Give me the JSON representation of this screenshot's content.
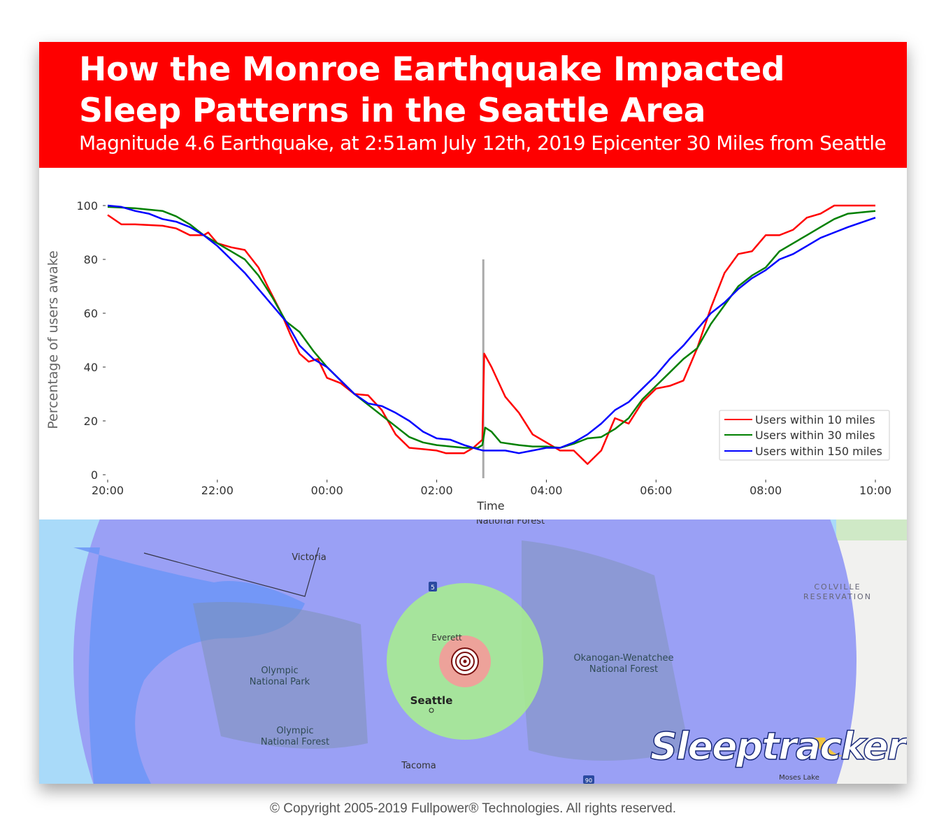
{
  "header": {
    "title": "How the Monroe Earthquake Impacted Sleep Patterns in the Seattle Area",
    "subtitle": "Magnitude 4.6 Earthquake, at 2:51am July 12th, 2019 Epicenter 30 Miles from Seattle",
    "background_color": "#fe0000"
  },
  "chart_data": {
    "type": "line",
    "xlabel": "Time",
    "ylabel": "Percentage of users awake",
    "ylim": [
      0,
      100
    ],
    "xlim": [
      "20:00",
      "10:00"
    ],
    "x_ticks": [
      "20:00",
      "22:00",
      "00:00",
      "02:00",
      "04:00",
      "06:00",
      "08:00",
      "10:00"
    ],
    "y_ticks": [
      0,
      20,
      40,
      60,
      80,
      100
    ],
    "grid": false,
    "legend_position": "bottom-right",
    "event_marker": {
      "time": "02:51",
      "color": "#aaaaaa",
      "top_value": 80
    },
    "series": [
      {
        "name": "Users within 10 miles",
        "color": "#ff0000",
        "points": [
          [
            "20:00",
            96.5
          ],
          [
            "20:15",
            93
          ],
          [
            "20:30",
            93
          ],
          [
            "21:00",
            92.5
          ],
          [
            "21:15",
            91.5
          ],
          [
            "21:30",
            89
          ],
          [
            "21:45",
            89
          ],
          [
            "21:50",
            90
          ],
          [
            "22:00",
            86
          ],
          [
            "22:15",
            84.5
          ],
          [
            "22:30",
            83.5
          ],
          [
            "22:45",
            77
          ],
          [
            "22:55",
            70
          ],
          [
            "23:10",
            60
          ],
          [
            "23:20",
            52
          ],
          [
            "23:30",
            45
          ],
          [
            "23:40",
            42
          ],
          [
            "23:50",
            43
          ],
          [
            "00:00",
            36
          ],
          [
            "00:15",
            34
          ],
          [
            "00:30",
            30
          ],
          [
            "00:45",
            29.5
          ],
          [
            "01:00",
            24
          ],
          [
            "01:15",
            15
          ],
          [
            "01:30",
            10
          ],
          [
            "01:45",
            9.5
          ],
          [
            "02:00",
            9
          ],
          [
            "02:10",
            8
          ],
          [
            "02:30",
            8
          ],
          [
            "02:40",
            10
          ],
          [
            "02:50",
            13
          ],
          [
            "02:52",
            45
          ],
          [
            "03:00",
            40
          ],
          [
            "03:15",
            29
          ],
          [
            "03:30",
            23
          ],
          [
            "03:45",
            15
          ],
          [
            "04:00",
            12
          ],
          [
            "04:15",
            9
          ],
          [
            "04:30",
            9
          ],
          [
            "04:45",
            4
          ],
          [
            "05:00",
            9
          ],
          [
            "05:15",
            21
          ],
          [
            "05:30",
            19
          ],
          [
            "05:45",
            27
          ],
          [
            "06:00",
            32
          ],
          [
            "06:15",
            33
          ],
          [
            "06:30",
            35
          ],
          [
            "06:45",
            47
          ],
          [
            "07:00",
            62
          ],
          [
            "07:15",
            75
          ],
          [
            "07:30",
            82
          ],
          [
            "07:45",
            83
          ],
          [
            "08:00",
            89
          ],
          [
            "08:15",
            89
          ],
          [
            "08:30",
            91
          ],
          [
            "08:45",
            95.5
          ],
          [
            "09:00",
            97
          ],
          [
            "09:15",
            100
          ],
          [
            "10:00",
            100
          ]
        ]
      },
      {
        "name": "Users within 30 miles",
        "color": "#008000",
        "points": [
          [
            "20:00",
            99.5
          ],
          [
            "20:30",
            99
          ],
          [
            "21:00",
            98
          ],
          [
            "21:15",
            96
          ],
          [
            "21:30",
            93
          ],
          [
            "21:45",
            89
          ],
          [
            "22:00",
            86
          ],
          [
            "22:15",
            83
          ],
          [
            "22:30",
            80
          ],
          [
            "22:45",
            74
          ],
          [
            "23:00",
            66
          ],
          [
            "23:15",
            57
          ],
          [
            "23:30",
            53
          ],
          [
            "23:45",
            46
          ],
          [
            "00:00",
            40
          ],
          [
            "00:15",
            35
          ],
          [
            "00:30",
            30
          ],
          [
            "00:45",
            26
          ],
          [
            "01:00",
            22
          ],
          [
            "01:15",
            18
          ],
          [
            "01:30",
            14
          ],
          [
            "01:45",
            12
          ],
          [
            "02:00",
            11
          ],
          [
            "02:15",
            10.5
          ],
          [
            "02:30",
            10
          ],
          [
            "02:45",
            10
          ],
          [
            "02:50",
            11
          ],
          [
            "02:53",
            17.5
          ],
          [
            "03:00",
            16
          ],
          [
            "03:10",
            12
          ],
          [
            "03:30",
            11
          ],
          [
            "03:45",
            10.5
          ],
          [
            "04:00",
            10.5
          ],
          [
            "04:15",
            10
          ],
          [
            "04:30",
            11.5
          ],
          [
            "04:45",
            13.5
          ],
          [
            "05:00",
            14
          ],
          [
            "05:15",
            17
          ],
          [
            "05:30",
            21
          ],
          [
            "05:45",
            28
          ],
          [
            "06:00",
            33
          ],
          [
            "06:15",
            38
          ],
          [
            "06:30",
            43
          ],
          [
            "06:45",
            47
          ],
          [
            "07:00",
            56
          ],
          [
            "07:15",
            63
          ],
          [
            "07:30",
            70
          ],
          [
            "07:45",
            74
          ],
          [
            "08:00",
            77
          ],
          [
            "08:15",
            83
          ],
          [
            "08:30",
            86
          ],
          [
            "08:45",
            89
          ],
          [
            "09:00",
            92
          ],
          [
            "09:15",
            95
          ],
          [
            "09:30",
            97
          ],
          [
            "10:00",
            98
          ]
        ]
      },
      {
        "name": "Users within 150 miles",
        "color": "#0000ff",
        "points": [
          [
            "20:00",
            100
          ],
          [
            "20:15",
            99.5
          ],
          [
            "20:30",
            98
          ],
          [
            "20:45",
            97
          ],
          [
            "21:00",
            95
          ],
          [
            "21:15",
            94
          ],
          [
            "21:30",
            92
          ],
          [
            "21:45",
            89
          ],
          [
            "22:00",
            85
          ],
          [
            "22:15",
            80
          ],
          [
            "22:30",
            75
          ],
          [
            "22:45",
            69
          ],
          [
            "23:00",
            63
          ],
          [
            "23:15",
            57
          ],
          [
            "23:30",
            48
          ],
          [
            "23:45",
            43
          ],
          [
            "00:00",
            40
          ],
          [
            "00:15",
            35
          ],
          [
            "00:30",
            30
          ],
          [
            "00:45",
            26.5
          ],
          [
            "01:00",
            25.5
          ],
          [
            "01:15",
            23
          ],
          [
            "01:30",
            20
          ],
          [
            "01:45",
            16
          ],
          [
            "02:00",
            13.5
          ],
          [
            "02:15",
            13
          ],
          [
            "02:30",
            11
          ],
          [
            "02:45",
            9.5
          ],
          [
            "02:51",
            9
          ],
          [
            "03:00",
            9
          ],
          [
            "03:15",
            9
          ],
          [
            "03:30",
            8
          ],
          [
            "03:45",
            9
          ],
          [
            "04:00",
            10
          ],
          [
            "04:15",
            10
          ],
          [
            "04:30",
            12
          ],
          [
            "04:45",
            15
          ],
          [
            "05:00",
            19
          ],
          [
            "05:15",
            24
          ],
          [
            "05:30",
            27
          ],
          [
            "05:45",
            32
          ],
          [
            "06:00",
            37
          ],
          [
            "06:15",
            43
          ],
          [
            "06:30",
            48
          ],
          [
            "06:45",
            54
          ],
          [
            "07:00",
            60
          ],
          [
            "07:15",
            64
          ],
          [
            "07:30",
            69
          ],
          [
            "07:45",
            73
          ],
          [
            "08:00",
            76
          ],
          [
            "08:15",
            80
          ],
          [
            "08:30",
            82
          ],
          [
            "08:45",
            85
          ],
          [
            "09:00",
            88
          ],
          [
            "09:15",
            90
          ],
          [
            "09:30",
            92
          ],
          [
            "10:00",
            95.5
          ]
        ]
      }
    ]
  },
  "map": {
    "labels": {
      "national_forest_top": "National Forest",
      "victoria": "Victoria",
      "everett": "Everett",
      "seattle": "Seattle",
      "tacoma": "Tacoma",
      "olympic_park": [
        "Olympic",
        "National Park"
      ],
      "olympic_forest": [
        "Olympic",
        "National Forest"
      ],
      "okanogan": [
        "Okanogan-Wenatchee",
        "National Forest"
      ],
      "colville": [
        "COLVILLE",
        "RESERVATION"
      ],
      "moses_lake": "Moses Lake",
      "i5": "5",
      "i90": "90"
    },
    "radius_colors": {
      "r150": "#9aa0f5",
      "r30": "#a8f08c",
      "r10": "#f59a9a"
    },
    "logo": "Sleeptracker"
  },
  "footer": {
    "copyright": "© Copyright 2005-2019 Fullpower® Technologies. All rights reserved."
  }
}
